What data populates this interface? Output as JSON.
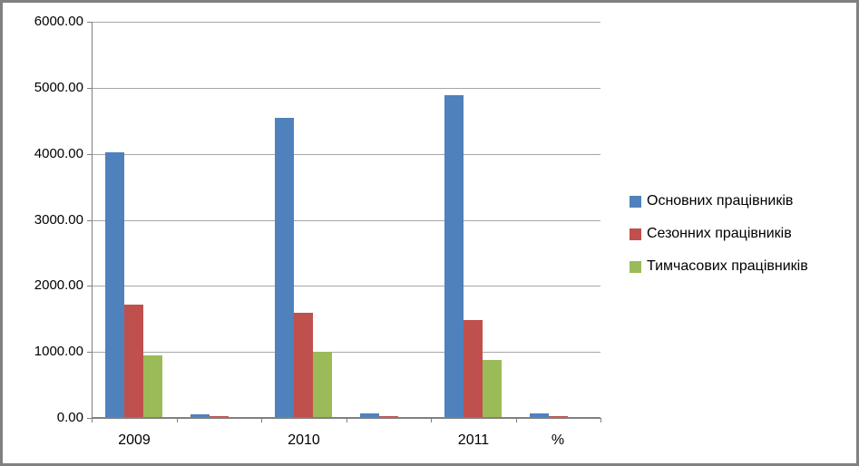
{
  "chart_data": {
    "type": "bar",
    "title": "",
    "categories": [
      "2009",
      "",
      "2010",
      "",
      "2011",
      "%"
    ],
    "series": [
      {
        "name": "Основних працівників",
        "color": "#4F81BD",
        "values": [
          4020,
          60,
          4540,
          65,
          4890,
          70
        ]
      },
      {
        "name": "Сезонних працівників",
        "color": "#C0504D",
        "values": [
          1720,
          28,
          1590,
          22,
          1480,
          25
        ]
      },
      {
        "name": "Тимчасових працівників",
        "color": "#9BBB59",
        "values": [
          950,
          16,
          1000,
          14,
          880,
          18
        ]
      }
    ],
    "ylim": [
      0,
      6000
    ],
    "yticks": [
      {
        "value": 0,
        "label": "0.00"
      },
      {
        "value": 1000,
        "label": "1000.00"
      },
      {
        "value": 2000,
        "label": "2000.00"
      },
      {
        "value": 3000,
        "label": "3000.00"
      },
      {
        "value": 4000,
        "label": "4000.00"
      },
      {
        "value": 5000,
        "label": "5000.00"
      },
      {
        "value": 6000,
        "label": "6000.00"
      }
    ],
    "grid": true,
    "legend_position": "right",
    "colors": {
      "axis": "#808080",
      "gridline": "#A6A6A6",
      "text": "#000000",
      "frame_border": "#808080",
      "background": "#FFFFFF"
    }
  }
}
